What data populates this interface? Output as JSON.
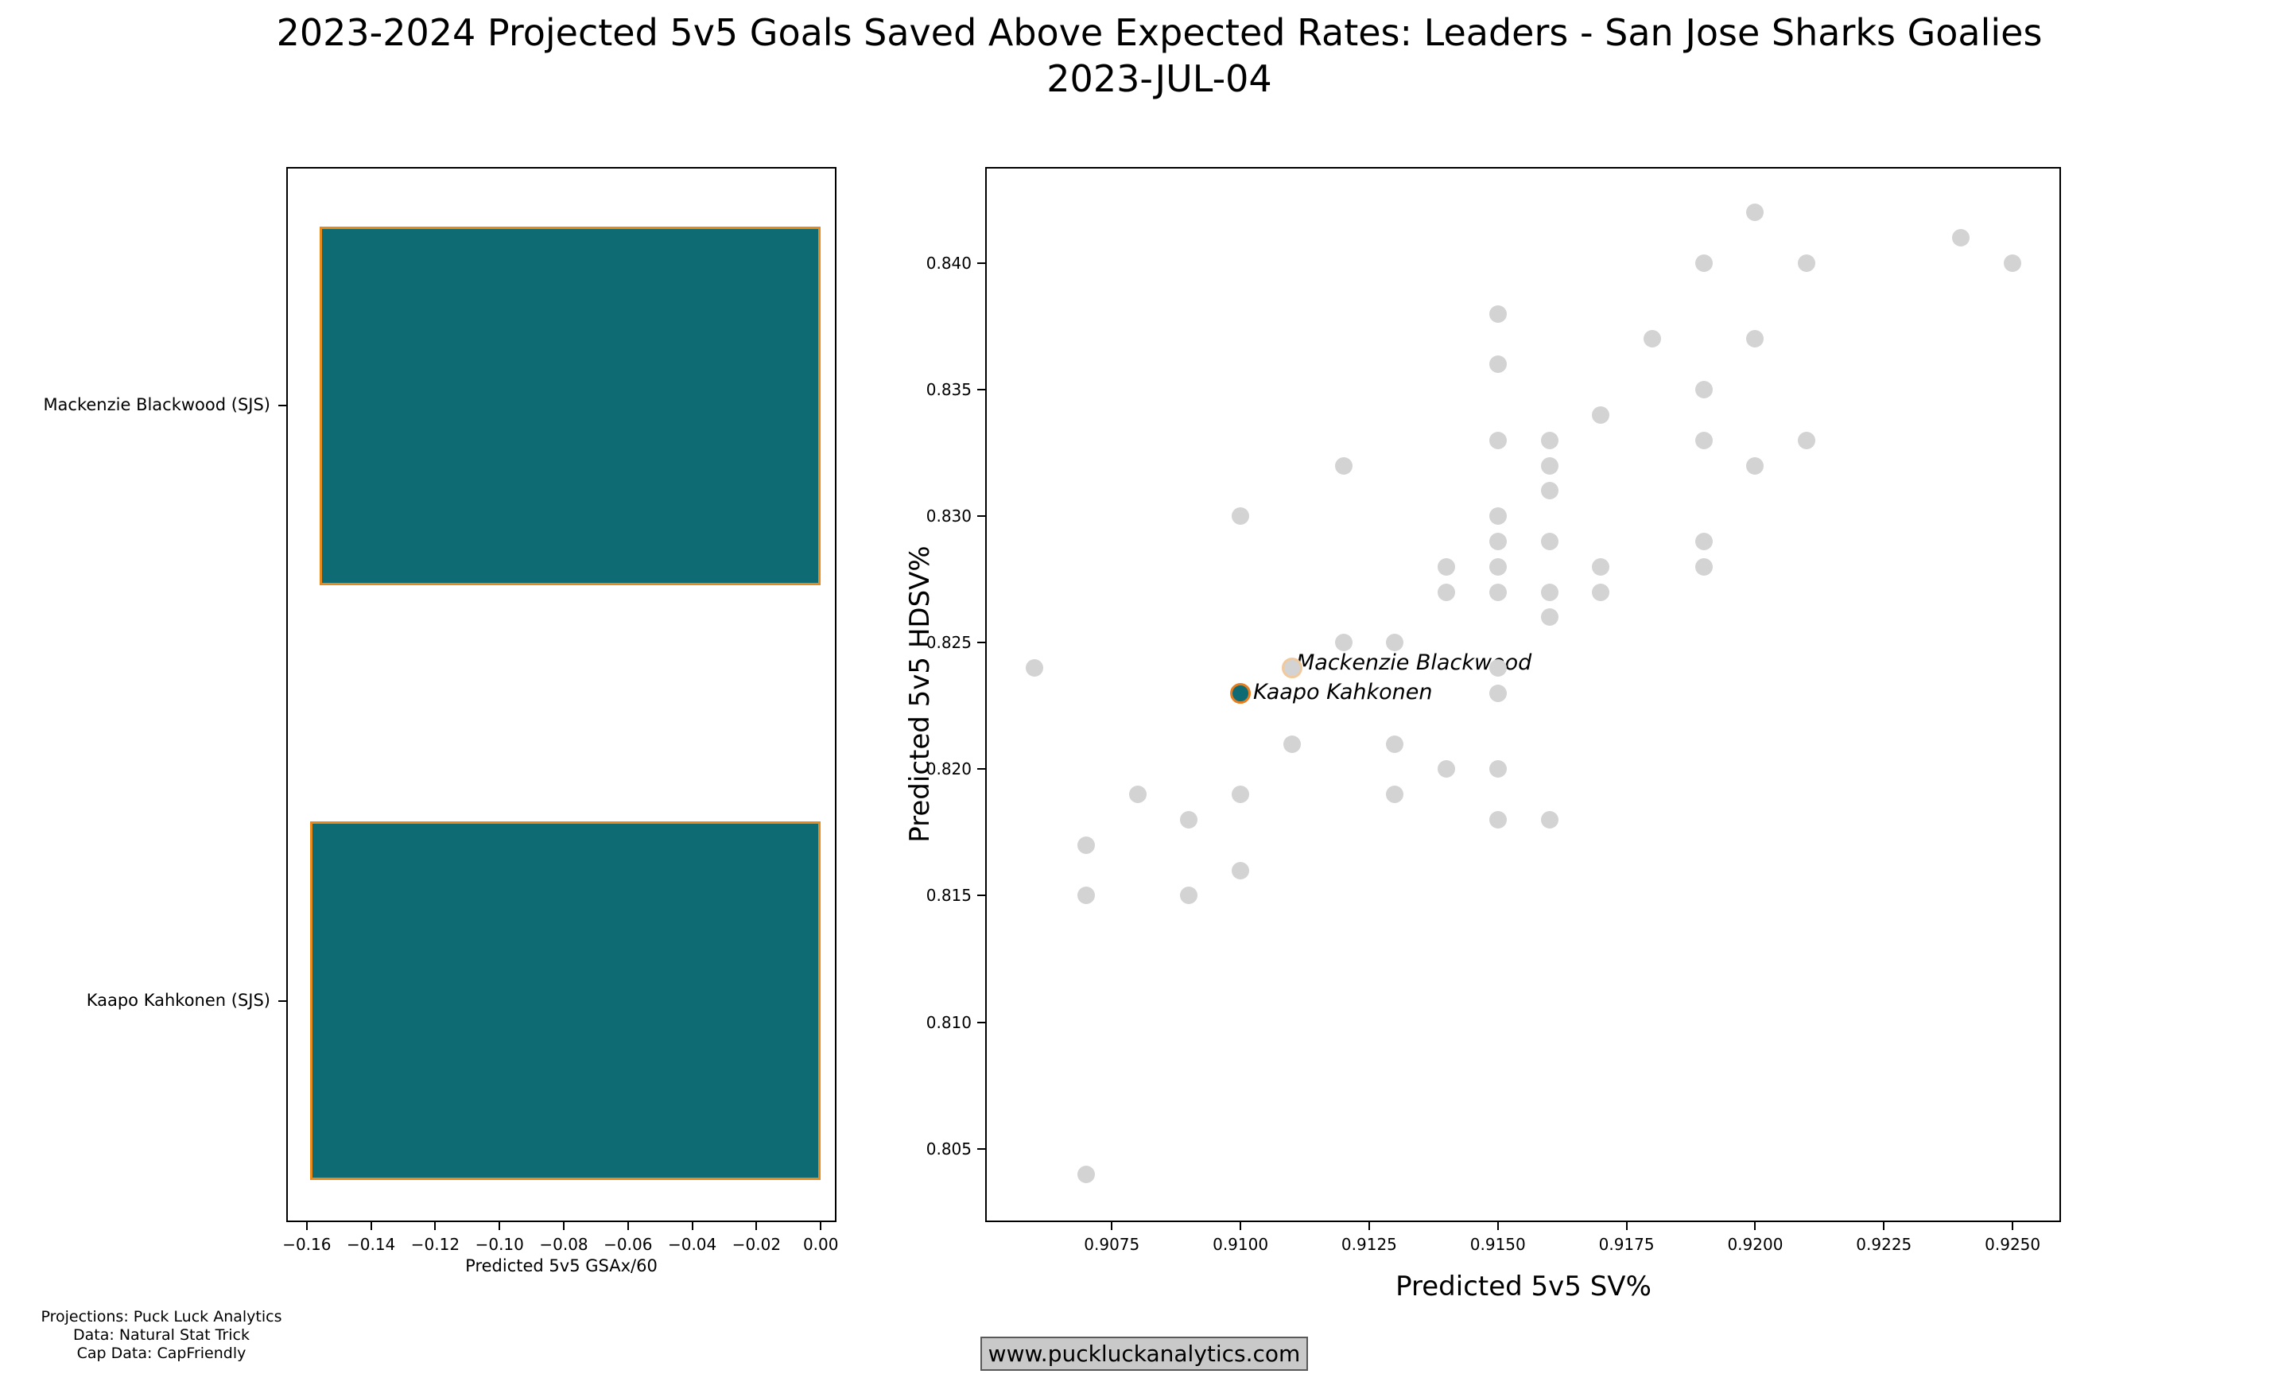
{
  "title": {
    "line1": "2023-2024 Projected 5v5 Goals Saved Above Expected Rates: Leaders - San Jose Sharks Goalies",
    "line2": "2023-JUL-04"
  },
  "footer": {
    "lines": [
      "Projections: Puck Luck Analytics",
      "Data: Natural Stat Trick",
      "Cap Data: CapFriendly"
    ]
  },
  "watermark": {
    "text": "www.puckluckanalytics.com"
  },
  "colors": {
    "teal": "#0e6b73",
    "bar_edge_orange": "#e8891c",
    "gray_dot": "#d3d3d3",
    "highlight_ring": "#e87d1e",
    "highlight_ring_light": "#f2c99d",
    "spine_black": "#000000",
    "watermark_bg": "#c9c9c9"
  },
  "chart_data": [
    {
      "type": "bar",
      "orientation": "horizontal",
      "categories": [
        "Mackenzie Blackwood (SJS)",
        "Kaapo Kahkonen (SJS)"
      ],
      "values": [
        -0.156,
        -0.159
      ],
      "xlabel": "Predicted 5v5 GSAx/60",
      "xlim": [
        -0.1664,
        0.0049
      ],
      "xticks": [
        -0.16,
        -0.14,
        -0.12,
        -0.1,
        -0.08,
        -0.06,
        -0.04,
        -0.02,
        0.0
      ],
      "xtick_labels": [
        "−0.16",
        "−0.14",
        "−0.12",
        "−0.10",
        "−0.08",
        "−0.06",
        "−0.04",
        "−0.02",
        "0.00"
      ],
      "grid": false
    },
    {
      "type": "scatter",
      "xlabel": "Predicted 5v5 SV%",
      "ylabel": "Predicted 5v5 HDSV%",
      "xlim": [
        0.90504,
        0.92594
      ],
      "ylim": [
        0.8021,
        0.8438
      ],
      "xticks": [
        0.9075,
        0.91,
        0.9125,
        0.915,
        0.9175,
        0.92,
        0.9225,
        0.925
      ],
      "xtick_labels": [
        "0.9075",
        "0.9100",
        "0.9125",
        "0.9150",
        "0.9175",
        "0.9200",
        "0.9225",
        "0.9250"
      ],
      "yticks": [
        0.805,
        0.81,
        0.815,
        0.82,
        0.825,
        0.83,
        0.835,
        0.84
      ],
      "ytick_labels": [
        "0.805",
        "0.810",
        "0.815",
        "0.820",
        "0.825",
        "0.830",
        "0.835",
        "0.840"
      ],
      "grid": false,
      "points": [
        [
          0.92,
          0.842
        ],
        [
          0.924,
          0.841
        ],
        [
          0.919,
          0.84
        ],
        [
          0.921,
          0.84
        ],
        [
          0.925,
          0.84
        ],
        [
          0.915,
          0.838
        ],
        [
          0.918,
          0.837
        ],
        [
          0.92,
          0.837
        ],
        [
          0.915,
          0.836
        ],
        [
          0.919,
          0.835
        ],
        [
          0.917,
          0.834
        ],
        [
          0.915,
          0.833
        ],
        [
          0.916,
          0.833
        ],
        [
          0.919,
          0.833
        ],
        [
          0.921,
          0.833
        ],
        [
          0.912,
          0.832
        ],
        [
          0.916,
          0.832
        ],
        [
          0.92,
          0.832
        ],
        [
          0.916,
          0.831
        ],
        [
          0.91,
          0.83
        ],
        [
          0.915,
          0.83
        ],
        [
          0.915,
          0.829
        ],
        [
          0.916,
          0.829
        ],
        [
          0.919,
          0.829
        ],
        [
          0.914,
          0.828
        ],
        [
          0.915,
          0.828
        ],
        [
          0.917,
          0.828
        ],
        [
          0.919,
          0.828
        ],
        [
          0.914,
          0.827
        ],
        [
          0.915,
          0.827
        ],
        [
          0.916,
          0.827
        ],
        [
          0.917,
          0.827
        ],
        [
          0.916,
          0.826
        ],
        [
          0.912,
          0.825
        ],
        [
          0.913,
          0.825
        ],
        [
          0.906,
          0.824
        ],
        [
          0.915,
          0.824
        ],
        [
          0.915,
          0.823
        ],
        [
          0.911,
          0.821
        ],
        [
          0.913,
          0.821
        ],
        [
          0.914,
          0.82
        ],
        [
          0.915,
          0.82
        ],
        [
          0.908,
          0.819
        ],
        [
          0.91,
          0.819
        ],
        [
          0.913,
          0.819
        ],
        [
          0.909,
          0.818
        ],
        [
          0.915,
          0.818
        ],
        [
          0.916,
          0.818
        ],
        [
          0.907,
          0.817
        ],
        [
          0.91,
          0.816
        ],
        [
          0.907,
          0.815
        ],
        [
          0.909,
          0.815
        ],
        [
          0.907,
          0.804
        ]
      ],
      "highlights": [
        {
          "name": "Mackenzie Blackwood",
          "x": 0.911,
          "y": 0.824,
          "fill": "#d3d3d3",
          "ring": "#f2c99d"
        },
        {
          "name": "Kaapo Kahkonen",
          "x": 0.91,
          "y": 0.823,
          "fill": "#0e6b73",
          "ring": "#e87d1e"
        }
      ]
    }
  ]
}
